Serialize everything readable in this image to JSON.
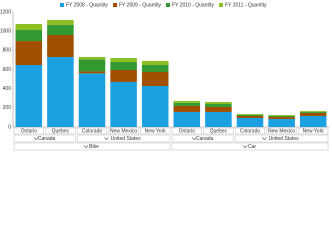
{
  "chart_data": {
    "type": "stacked_bar",
    "categories": [
      "Ontario",
      "Quebec",
      "Colorado",
      "New Mexico",
      "New York",
      "Ontario",
      "Quebec",
      "Colorado",
      "New Mexico",
      "New York"
    ],
    "category_groups": [
      [
        "Canada",
        "United States",
        "Canada",
        "United States"
      ],
      [
        "Bike",
        "Car"
      ]
    ],
    "series": [
      {
        "name": "FY 2008 - Quantity",
        "color": "#1ba1e2",
        "values": [
          647,
          730,
          560,
          470,
          428,
          157,
          157,
          94,
          84,
          115
        ]
      },
      {
        "name": "FY 2009 - Quantity",
        "color": "#a05000",
        "values": [
          250,
          230,
          20,
          125,
          146,
          63,
          52,
          21,
          21,
          31
        ]
      },
      {
        "name": "FY 2010 - Quantity",
        "color": "#339933",
        "values": [
          115,
          104,
          126,
          83,
          73,
          31,
          31,
          10,
          10,
          10
        ]
      },
      {
        "name": "FY 2011 - Quantity",
        "color": "#8cbf26",
        "values": [
          63,
          53,
          25,
          42,
          42,
          21,
          21,
          10,
          10,
          10
        ]
      }
    ],
    "ylim": [
      0,
      1200
    ],
    "yticks": [
      0,
      200,
      400,
      600,
      800,
      1000,
      1200
    ],
    "legend": "top"
  }
}
